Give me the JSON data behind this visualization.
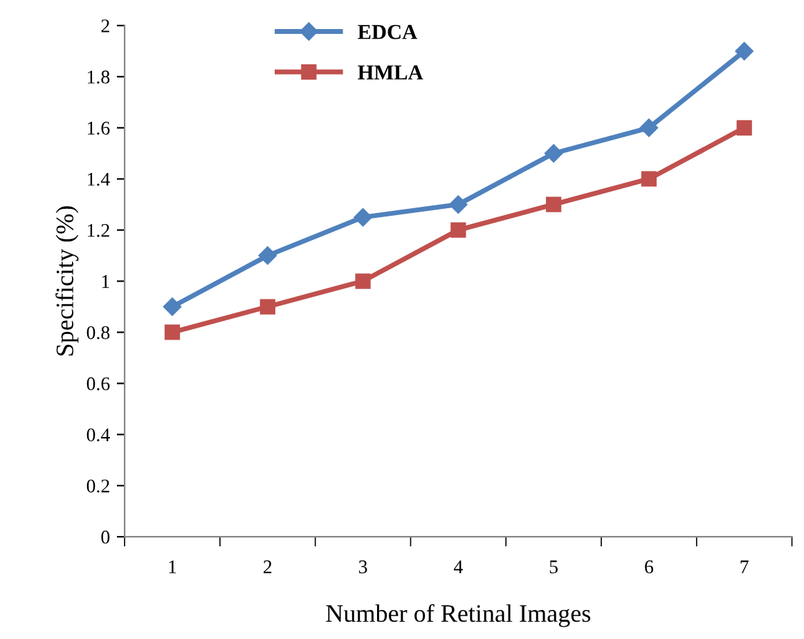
{
  "chart_data": {
    "type": "line",
    "xlabel": "Number of Retinal Images",
    "ylabel": "Specificity (%)",
    "categories": [
      "1",
      "2",
      "3",
      "4",
      "5",
      "6",
      "7"
    ],
    "series": [
      {
        "name": "EDCA",
        "color": "#4f81bd",
        "marker": "diamond",
        "values": [
          0.9,
          1.1,
          1.25,
          1.3,
          1.5,
          1.6,
          1.9
        ]
      },
      {
        "name": "HMLA",
        "color": "#c0504d",
        "marker": "square",
        "values": [
          0.8,
          0.9,
          1.0,
          1.2,
          1.3,
          1.4,
          1.6
        ]
      }
    ],
    "ylim": [
      0,
      2
    ],
    "yticks": [
      0,
      0.2,
      0.4,
      0.6,
      0.8,
      1,
      1.2,
      1.4,
      1.6,
      1.8,
      2
    ],
    "grid": false,
    "legend": "top",
    "line_style": "solid"
  }
}
